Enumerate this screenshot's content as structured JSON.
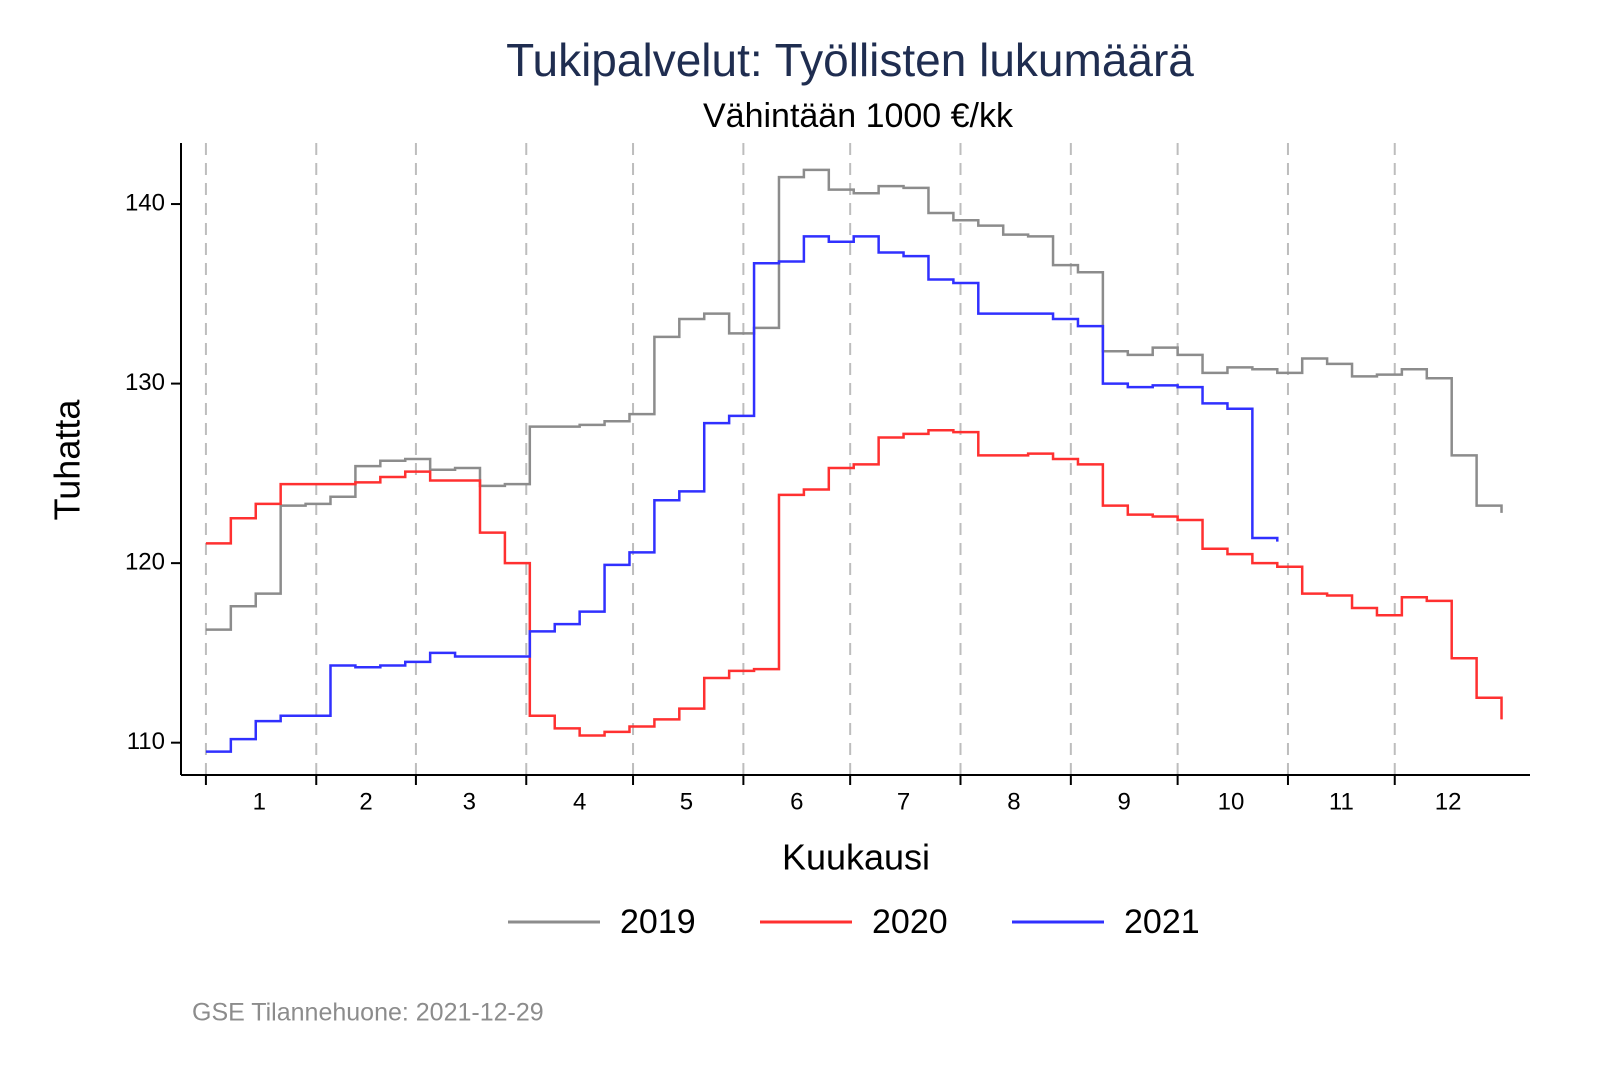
{
  "chart_data": {
    "type": "step",
    "title": "Tukipalvelut: Työllisten lukumäärä",
    "subtitle": "Vähintään 1000 €/kk",
    "x_label": "Kuukausi",
    "y_label": "Tuhatta",
    "source": "GSE Tilannehuone: 2021-12-29",
    "x": [
      1,
      8,
      15,
      22,
      29,
      36,
      43,
      50,
      57,
      64,
      71,
      78,
      85,
      92,
      99,
      106,
      113,
      120,
      127,
      134,
      141,
      148,
      155,
      162,
      169,
      176,
      183,
      190,
      197,
      204,
      211,
      218,
      225,
      232,
      239,
      246,
      253,
      260,
      267,
      274,
      281,
      288,
      295,
      302,
      309,
      316,
      323,
      330,
      337,
      344,
      351,
      358,
      365
    ],
    "series": [
      {
        "name": "2019",
        "color": "#8c8c8c",
        "values": [
          116.3,
          117.6,
          118.3,
          123.2,
          123.3,
          123.7,
          125.4,
          125.7,
          125.8,
          125.2,
          125.3,
          124.3,
          124.4,
          127.6,
          127.6,
          127.7,
          127.9,
          128.3,
          132.6,
          133.6,
          133.9,
          132.8,
          133.1,
          141.5,
          141.9,
          140.8,
          140.6,
          141.0,
          140.9,
          139.5,
          139.1,
          138.8,
          138.3,
          138.2,
          136.6,
          136.2,
          131.8,
          131.6,
          132.0,
          131.6,
          130.6,
          130.9,
          130.8,
          130.6,
          131.4,
          131.1,
          130.4,
          130.5,
          130.8,
          130.3,
          126.0,
          123.2,
          122.8
        ]
      },
      {
        "name": "2020",
        "color": "#ff3030",
        "values": [
          121.1,
          122.5,
          123.3,
          124.4,
          124.4,
          124.4,
          124.5,
          124.8,
          125.1,
          124.6,
          124.6,
          121.7,
          120.0,
          111.5,
          110.8,
          110.4,
          110.6,
          110.9,
          111.3,
          111.9,
          113.6,
          114.0,
          114.1,
          123.8,
          124.1,
          125.3,
          125.5,
          127.0,
          127.2,
          127.4,
          127.3,
          126.0,
          126.0,
          126.1,
          125.8,
          125.5,
          123.2,
          122.7,
          122.6,
          122.4,
          120.8,
          120.5,
          120.0,
          119.8,
          118.3,
          118.2,
          117.5,
          117.1,
          118.1,
          117.9,
          114.7,
          112.5,
          111.3
        ]
      },
      {
        "name": "2021",
        "color": "#3030ff",
        "values": [
          109.5,
          110.2,
          111.2,
          111.5,
          111.5,
          114.3,
          114.2,
          114.3,
          114.5,
          115.0,
          114.8,
          114.8,
          114.8,
          116.2,
          116.6,
          117.3,
          119.9,
          120.6,
          123.5,
          124.0,
          127.8,
          128.2,
          136.7,
          136.8,
          138.2,
          137.9,
          138.2,
          137.3,
          137.1,
          135.8,
          135.6,
          133.9,
          133.9,
          133.9,
          133.6,
          133.2,
          130.0,
          129.8,
          129.9,
          129.8,
          128.9,
          128.6,
          121.4,
          121.2,
          null,
          null,
          null,
          null,
          null,
          null,
          null,
          null,
          null
        ]
      }
    ],
    "xlim": [
      -6,
      373
    ],
    "ylim": [
      108.2,
      143.4
    ],
    "xticks": [
      {
        "value": 16,
        "label": "1"
      },
      {
        "value": 46,
        "label": "2"
      },
      {
        "value": 75,
        "label": "3"
      },
      {
        "value": 106,
        "label": "4"
      },
      {
        "value": 136,
        "label": "5"
      },
      {
        "value": 167,
        "label": "6"
      },
      {
        "value": 197,
        "label": "7"
      },
      {
        "value": 228,
        "label": "8"
      },
      {
        "value": 259,
        "label": "9"
      },
      {
        "value": 289,
        "label": "10"
      },
      {
        "value": 320,
        "label": "11"
      },
      {
        "value": 350,
        "label": "12"
      }
    ],
    "x_dividers": [
      1,
      32,
      60,
      91,
      121,
      152,
      182,
      213,
      244,
      274,
      305,
      335
    ],
    "yticks": [
      110,
      120,
      130,
      140
    ],
    "legend": "bottom"
  }
}
